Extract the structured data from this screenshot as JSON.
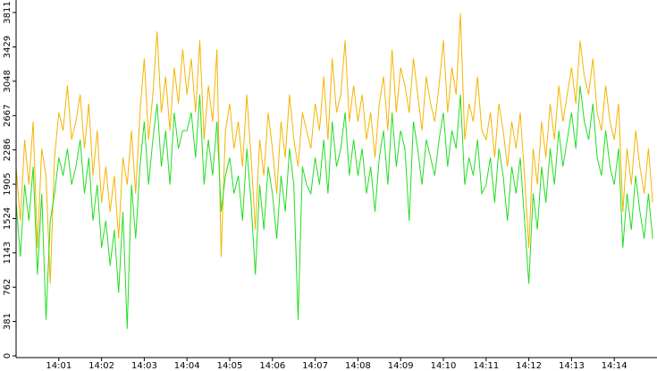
{
  "chart_data": {
    "type": "line",
    "x": [
      0,
      0.1,
      0.2,
      0.3,
      0.4,
      0.5,
      0.6,
      0.7,
      0.8,
      0.9,
      1,
      1.1,
      1.2,
      1.3,
      1.4,
      1.5,
      1.6,
      1.7,
      1.8,
      1.9,
      2,
      2.1,
      2.2,
      2.3,
      2.4,
      2.5,
      2.6,
      2.7,
      2.8,
      2.9,
      3,
      3.1,
      3.2,
      3.3,
      3.4,
      3.5,
      3.6,
      3.7,
      3.8,
      3.9,
      4,
      4.1,
      4.2,
      4.3,
      4.4,
      4.5,
      4.6,
      4.7,
      4.8,
      4.9,
      5,
      5.1,
      5.2,
      5.3,
      5.4,
      5.5,
      5.6,
      5.7,
      5.8,
      5.9,
      6,
      6.1,
      6.2,
      6.3,
      6.4,
      6.5,
      6.6,
      6.7,
      6.8,
      6.9,
      7,
      7.1,
      7.2,
      7.3,
      7.4,
      7.5,
      7.6,
      7.7,
      7.8,
      7.9,
      8,
      8.1,
      8.2,
      8.3,
      8.4,
      8.5,
      8.6,
      8.7,
      8.8,
      8.9,
      9,
      9.1,
      9.2,
      9.3,
      9.4,
      9.5,
      9.6,
      9.7,
      9.8,
      9.9,
      10,
      10.1,
      10.2,
      10.3,
      10.4,
      10.5,
      10.6,
      10.7,
      10.8,
      10.9,
      11,
      11.1,
      11.2,
      11.3,
      11.4,
      11.5,
      11.6,
      11.7,
      11.8,
      11.9,
      12,
      12.1,
      12.2,
      12.3,
      12.4,
      12.5,
      12.6,
      12.7,
      12.8,
      12.9,
      13,
      13.1,
      13.2,
      13.3,
      13.4,
      13.5,
      13.6,
      13.7,
      13.8,
      13.9,
      14,
      14.1,
      14.2,
      14.3,
      14.4,
      14.5,
      14.6,
      14.7,
      14.8,
      14.9
    ],
    "series": [
      {
        "color": "#f5b400",
        "values": [
          2100,
          1500,
          2400,
          1900,
          2600,
          1200,
          2300,
          2000,
          800,
          2200,
          2700,
          2500,
          3000,
          2400,
          2600,
          2900,
          2300,
          2800,
          2000,
          2500,
          1700,
          2100,
          1600,
          2000,
          1300,
          2200,
          1900,
          2500,
          1800,
          2700,
          3300,
          2400,
          2900,
          3600,
          2700,
          3100,
          2500,
          3200,
          2800,
          3400,
          2900,
          3300,
          2700,
          3500,
          2400,
          3000,
          2600,
          3400,
          1100,
          2500,
          2800,
          2300,
          2600,
          2100,
          2900,
          2200,
          1400,
          2400,
          2000,
          2700,
          2300,
          1800,
          2600,
          2200,
          2900,
          2400,
          2100,
          2700,
          2500,
          2300,
          2800,
          2500,
          3100,
          2400,
          3300,
          2700,
          2900,
          3500,
          2600,
          3000,
          2600,
          2900,
          2400,
          2700,
          2200,
          2800,
          3100,
          2500,
          3400,
          2700,
          3200,
          3000,
          2700,
          3300,
          2900,
          2500,
          3100,
          2800,
          2600,
          3000,
          3500,
          2700,
          3200,
          2900,
          3800,
          2400,
          2800,
          2600,
          3100,
          2500,
          2400,
          2700,
          2200,
          2800,
          2500,
          2100,
          2600,
          2300,
          2700,
          2000,
          1200,
          2300,
          1900,
          2600,
          2200,
          2800,
          2400,
          3000,
          2600,
          2900,
          3200,
          2800,
          3500,
          3100,
          2900,
          3300,
          2700,
          2500,
          3000,
          2600,
          2400,
          2800,
          1600,
          2300,
          1900,
          2500,
          2100,
          1800,
          2300,
          1700
        ]
      },
      {
        "color": "#22dd22",
        "values": [
          1700,
          1100,
          1900,
          1500,
          2100,
          900,
          1800,
          400,
          1500,
          1800,
          2200,
          2000,
          2300,
          1900,
          2100,
          2400,
          1800,
          2200,
          1500,
          1900,
          1200,
          1500,
          1000,
          1400,
          700,
          1600,
          300,
          1900,
          1300,
          2100,
          2600,
          1900,
          2400,
          2800,
          2100,
          2500,
          1900,
          2700,
          2300,
          2500,
          2500,
          2700,
          2200,
          2900,
          1900,
          2400,
          2000,
          2600,
          1600,
          2000,
          2200,
          1800,
          2000,
          1500,
          2300,
          1700,
          900,
          1900,
          1400,
          2100,
          1800,
          1300,
          2000,
          1600,
          2300,
          1900,
          400,
          2100,
          1900,
          1800,
          2200,
          1900,
          2400,
          1800,
          2600,
          2100,
          2300,
          2700,
          2000,
          2400,
          2000,
          2300,
          1800,
          2100,
          1600,
          2200,
          2500,
          1900,
          2700,
          2100,
          2500,
          2300,
          1500,
          2600,
          2300,
          1900,
          2400,
          2200,
          2000,
          2400,
          2700,
          2100,
          2500,
          2300,
          2900,
          1900,
          2200,
          2000,
          2400,
          1800,
          1900,
          2200,
          1700,
          2300,
          2000,
          1500,
          2100,
          1800,
          2200,
          1500,
          800,
          1800,
          1400,
          2100,
          1700,
          2300,
          1900,
          2500,
          2100,
          2400,
          2700,
          2300,
          3000,
          2600,
          2400,
          2800,
          2200,
          2000,
          2500,
          2100,
          1900,
          2300,
          1200,
          1800,
          1400,
          2000,
          1600,
          1300,
          1800,
          1300
        ]
      }
    ],
    "xlim": [
      0,
      15
    ],
    "xticks": [
      {
        "value": 1,
        "label": "14:01"
      },
      {
        "value": 2,
        "label": "14:02"
      },
      {
        "value": 3,
        "label": "14:03"
      },
      {
        "value": 4,
        "label": "14:04"
      },
      {
        "value": 5,
        "label": "14:05"
      },
      {
        "value": 6,
        "label": "14:06"
      },
      {
        "value": 7,
        "label": "14:07"
      },
      {
        "value": 8,
        "label": "14:08"
      },
      {
        "value": 9,
        "label": "14:09"
      },
      {
        "value": 10,
        "label": "14:10"
      },
      {
        "value": 11,
        "label": "14:11"
      },
      {
        "value": 12,
        "label": "14:12"
      },
      {
        "value": 13,
        "label": "14:13"
      },
      {
        "value": 14,
        "label": "14:14"
      }
    ],
    "ylim": [
      0,
      3811
    ],
    "yticks": [
      0,
      381,
      762,
      1143,
      1524,
      1905,
      2286,
      2667,
      3048,
      3429,
      3811
    ]
  }
}
